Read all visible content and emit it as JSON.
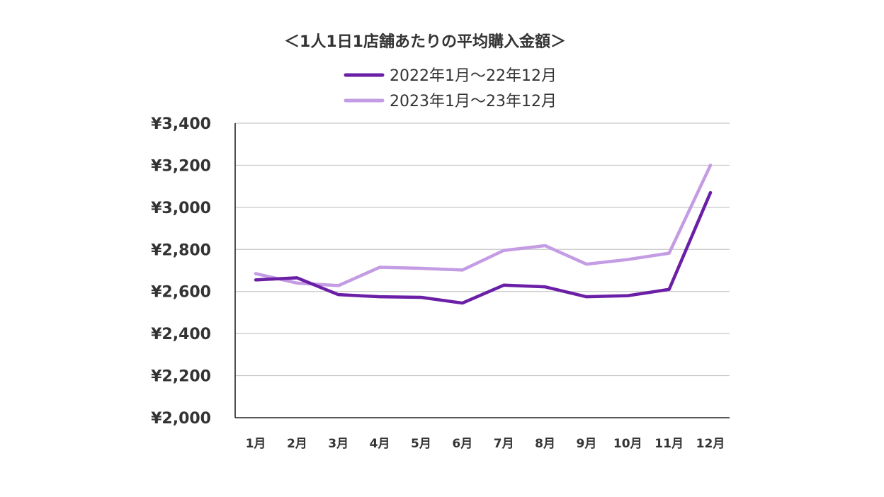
{
  "chart_data": {
    "type": "line",
    "title": "＜1人1日1店舗あたりの平均購入金額＞",
    "categories": [
      "1月",
      "2月",
      "3月",
      "4月",
      "5月",
      "6月",
      "7月",
      "8月",
      "9月",
      "10月",
      "11月",
      "12月"
    ],
    "series": [
      {
        "name": "2022年1月〜22年12月",
        "color": "#6a1fa6",
        "values": [
          2655,
          2665,
          2585,
          2575,
          2572,
          2545,
          2630,
          2622,
          2575,
          2580,
          2610,
          3070
        ]
      },
      {
        "name": "2023年1月〜23年12月",
        "color": "#c49ce4",
        "values": [
          2685,
          2640,
          2628,
          2715,
          2710,
          2702,
          2795,
          2818,
          2730,
          2752,
          2782,
          3200
        ]
      }
    ],
    "ylim": [
      2000,
      3400
    ],
    "yticks": [
      2000,
      2200,
      2400,
      2600,
      2800,
      3000,
      3200,
      3400
    ],
    "ytick_labels": [
      "¥2,000",
      "¥2,200",
      "¥2,400",
      "¥2,600",
      "¥2,800",
      "¥3,000",
      "¥3,200",
      "¥3,400"
    ],
    "grid": true,
    "legend": "top-center"
  }
}
